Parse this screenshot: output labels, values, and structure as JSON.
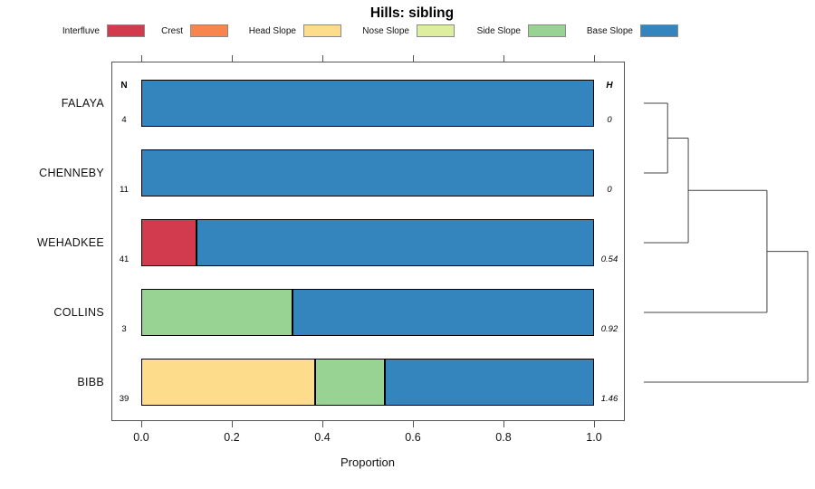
{
  "title": "Hills: sibling",
  "legend": [
    {
      "label": "Interfluve",
      "color": "#D23B4E"
    },
    {
      "label": "Crest",
      "color": "#F8854E"
    },
    {
      "label": "Head Slope",
      "color": "#FDDC8B"
    },
    {
      "label": "Nose Slope",
      "color": "#DDEF9E"
    },
    {
      "label": "Side Slope",
      "color": "#99D394"
    },
    {
      "label": "Base Slope",
      "color": "#3484BE"
    }
  ],
  "columns": {
    "n_header": "N",
    "h_header": "H"
  },
  "axis": {
    "label": "Proportion",
    "ticks": [
      "0.0",
      "0.2",
      "0.4",
      "0.6",
      "0.8",
      "1.0"
    ],
    "min": 0,
    "max": 1
  },
  "chart_data": {
    "type": "bar",
    "subtype": "horizontal-stacked-proportion",
    "title": "Hills: sibling",
    "xlabel": "Proportion",
    "xlim": [
      0,
      1
    ],
    "categories": [
      "Interfluve",
      "Crest",
      "Head Slope",
      "Nose Slope",
      "Side Slope",
      "Base Slope"
    ],
    "rows": [
      {
        "name": "FALAYA",
        "n": "4",
        "h": "0",
        "segments": [
          {
            "category": "Base Slope",
            "value": 1.0
          }
        ]
      },
      {
        "name": "CHENNEBY",
        "n": "11",
        "h": "0",
        "segments": [
          {
            "category": "Base Slope",
            "value": 1.0
          }
        ]
      },
      {
        "name": "WEHADKEE",
        "n": "41",
        "h": "0.54",
        "segments": [
          {
            "category": "Interfluve",
            "value": 0.122
          },
          {
            "category": "Base Slope",
            "value": 0.878
          }
        ]
      },
      {
        "name": "COLLINS",
        "n": "3",
        "h": "0.92",
        "segments": [
          {
            "category": "Side Slope",
            "value": 0.333
          },
          {
            "category": "Base Slope",
            "value": 0.667
          }
        ]
      },
      {
        "name": "BIBB",
        "n": "39",
        "h": "1.46",
        "segments": [
          {
            "category": "Head Slope",
            "value": 0.385
          },
          {
            "category": "Side Slope",
            "value": 0.154
          },
          {
            "category": "Base Slope",
            "value": 0.462
          }
        ]
      }
    ],
    "dendrogram": {
      "leaf_order": [
        "FALAYA",
        "CHENNEBY",
        "WEHADKEE",
        "COLLINS",
        "BIBB"
      ],
      "merges": [
        {
          "children": [
            "leaf:0",
            "leaf:1"
          ],
          "height": 0.145
        },
        {
          "children": [
            "merge:0",
            "leaf:2"
          ],
          "height": 0.271
        },
        {
          "children": [
            "merge:1",
            "leaf:3"
          ],
          "height": 0.751
        },
        {
          "children": [
            "merge:2",
            "leaf:4"
          ],
          "height": 1.0
        }
      ]
    }
  }
}
